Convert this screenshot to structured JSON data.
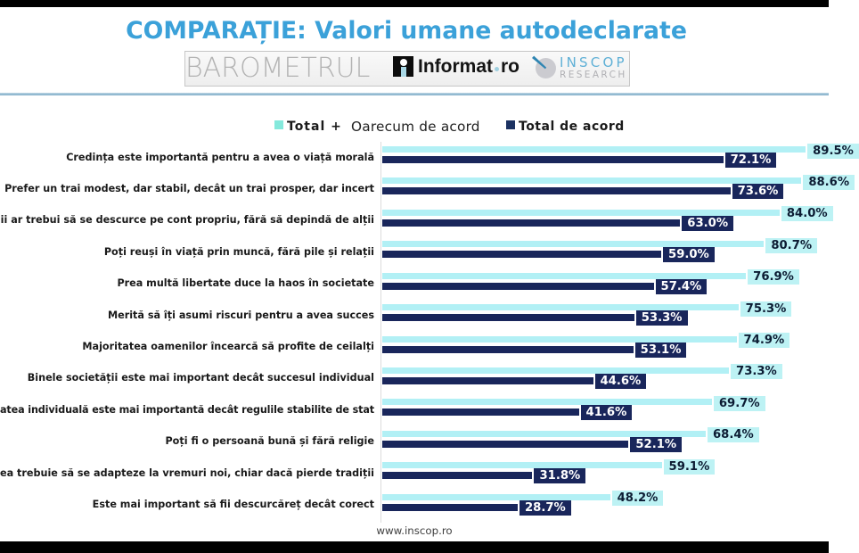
{
  "page": {
    "letterbox_color": "#000000",
    "background": "#ffffff"
  },
  "title": {
    "text": "COMPARAȚIE: Valori umane autodeclarate",
    "color": "#3ba1d9"
  },
  "logo_bar": {
    "barometrul_text": "BAROMETRUL",
    "informat": {
      "text_main": "Informat",
      "text_tld": "ro"
    },
    "inscop": {
      "line1": "INSCOP",
      "line2": "RESEARCH"
    }
  },
  "legend": {
    "light": {
      "label_bold": "Total +",
      "label_rest": "Oarecum de acord",
      "swatch_color": "#8feade"
    },
    "dark": {
      "label_bold": "Total de acord",
      "swatch_color": "#1c3262"
    }
  },
  "chart_data": {
    "type": "bar",
    "orientation": "horizontal",
    "title": "COMPARAȚIE: Valori umane autodeclarate",
    "xlabel": "",
    "ylabel": "",
    "xlim": [
      0,
      100
    ],
    "grid": false,
    "legend_position": "top",
    "value_suffix": "%",
    "categories": [
      "Credința este importantă pentru a avea o viață morală",
      "Prefer un trai modest, dar stabil, decât un trai prosper, dar incert",
      "ii ar trebui să se descurce pe cont propriu, fără să depindă de alții",
      "Poți reuși în viață prin muncă, fără pile și relații",
      "Prea multă libertate duce la haos în societate",
      "Merită să îți asumi riscuri pentru a avea succes",
      "Majoritatea oamenilor încearcă să profite de ceilalți",
      "Binele societății este mai important decât succesul individual",
      "atea individuală este mai importantă decât regulile stabilite de stat",
      "Poți fi o persoană bună și fără religie",
      "ea trebuie să se adapteze la vremuri noi, chiar dacă pierde tradiții",
      "Este mai important să fii descurcăreț decât corect"
    ],
    "series": [
      {
        "name": "Total + Oarecum de acord",
        "color": "#b2f0f5",
        "label_bg": "#bdf2f4",
        "label_color": "#0d2137",
        "values": [
          89.5,
          88.6,
          84.0,
          80.7,
          76.9,
          75.3,
          74.9,
          73.3,
          69.7,
          68.4,
          59.1,
          48.2
        ],
        "labels": [
          "89.5%",
          "88.6%",
          "84.0%",
          "80.7%",
          "76.9%",
          "75.3%",
          "74.9%",
          "73.3%",
          "69.7%",
          "68.4%",
          "59.1%",
          "48.2%"
        ]
      },
      {
        "name": "Total de acord",
        "color": "#19265b",
        "label_bg": "#19265b",
        "label_color": "#ffffff",
        "values": [
          72.1,
          73.6,
          63.0,
          59.0,
          57.4,
          53.3,
          53.1,
          44.6,
          41.6,
          52.1,
          31.8,
          28.7
        ],
        "labels": [
          "72.1%",
          "73.6%",
          "63.0%",
          "59.0%",
          "57.4%",
          "53.3%",
          "53.1%",
          "44.6%",
          "41.6%",
          "52.1%",
          "31.8%",
          "28.7%"
        ]
      }
    ]
  },
  "footer": {
    "text": "www.inscop.ro"
  }
}
